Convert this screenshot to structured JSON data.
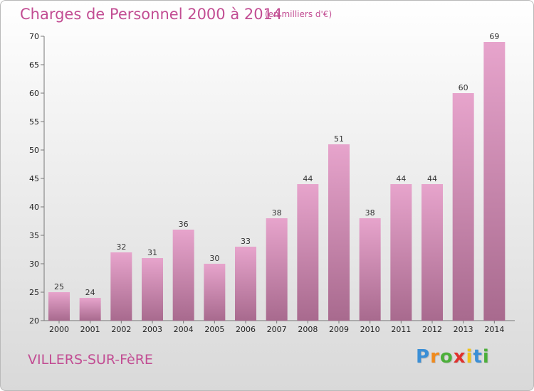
{
  "chart_data": {
    "type": "bar",
    "title": "Charges de Personnel 2000 à 2014",
    "subtitle": "(en milliers d'€)",
    "categories": [
      "2000",
      "2001",
      "2002",
      "2003",
      "2004",
      "2005",
      "2006",
      "2007",
      "2008",
      "2009",
      "2010",
      "2011",
      "2012",
      "2013",
      "2014"
    ],
    "values": [
      25,
      24,
      32,
      31,
      36,
      30,
      33,
      38,
      44,
      51,
      38,
      44,
      44,
      60,
      69
    ],
    "ylim": [
      20,
      70
    ],
    "yticks": [
      20,
      25,
      30,
      35,
      40,
      45,
      50,
      55,
      60,
      65,
      70
    ],
    "grid": false,
    "legend": "none",
    "bar_color_top": "#e7a4cc",
    "bar_color_bottom": "#a86a8e"
  },
  "footer": {
    "commune": "VILLERS-SUR-FèRE",
    "logo": {
      "letters": [
        "P",
        "r",
        "o",
        "x",
        "i",
        "t",
        "i"
      ],
      "colors": [
        "#3b8fd6",
        "#f08a1c",
        "#4caf3a",
        "#e0312d",
        "#f2c318",
        "#3b8fd6",
        "#4caf3a"
      ]
    }
  }
}
